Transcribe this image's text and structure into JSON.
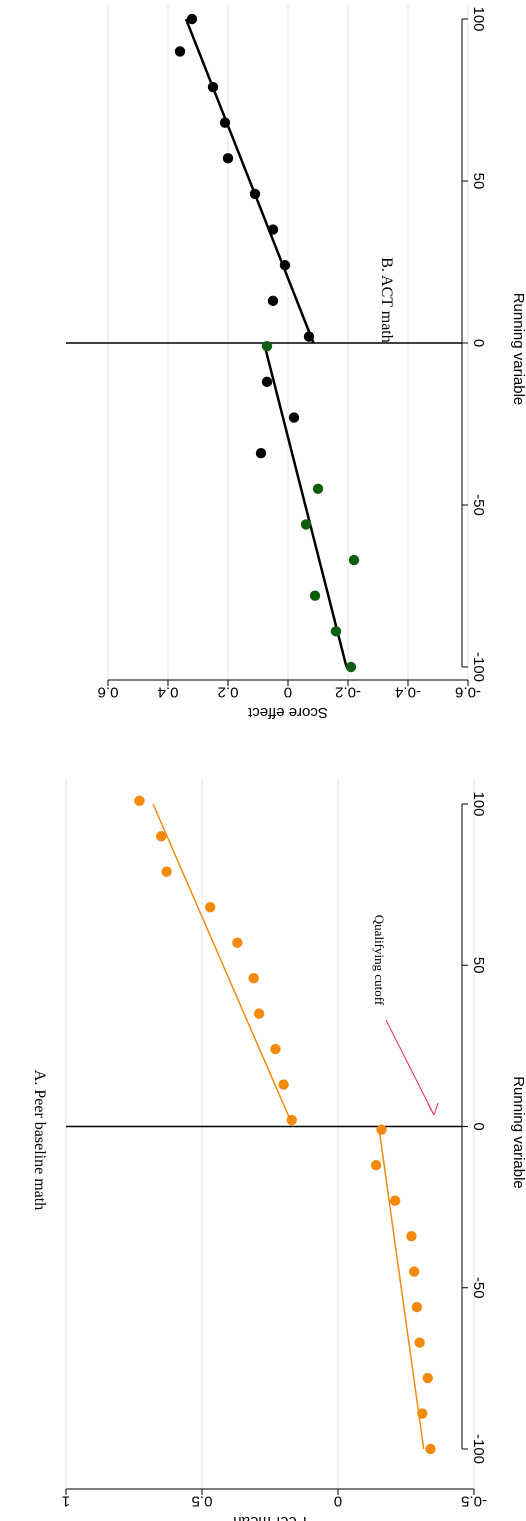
{
  "chart_data": [
    {
      "type": "scatter",
      "title": "A. Peer baseline math",
      "xlabel": "Running variable",
      "ylabel": "Peer mean",
      "xlim": [
        -100,
        100
      ],
      "ylim": [
        -0.5,
        1
      ],
      "x_ticks": [
        -100,
        -50,
        0,
        50,
        100
      ],
      "y_ticks": [
        -0.5,
        0,
        0.5,
        1
      ],
      "x_tick_labels": [
        "-100",
        "-50",
        "0",
        "50",
        "100"
      ],
      "y_tick_labels": [
        "-0.5",
        "0",
        "0.5",
        "1"
      ],
      "grid": true,
      "cutoff_x": 0,
      "annotation": {
        "text": "Qualifying cutoff",
        "points_to_x": 0
      },
      "colors": {
        "points": "#F28A0E",
        "fit": "#F28A0E",
        "cutoff": "#000000",
        "arrow": "#E0344A",
        "grid": "#DCE6E8"
      },
      "series": [
        {
          "x": [
            -100,
            -89,
            -78,
            -67,
            -56,
            -45,
            -34,
            -23,
            -12,
            -1,
            2,
            13,
            24,
            35,
            46,
            57,
            68,
            79,
            90,
            101
          ],
          "y": [
            -0.34,
            -0.31,
            -0.33,
            -0.3,
            -0.29,
            -0.28,
            -0.27,
            -0.21,
            -0.14,
            -0.16,
            0.17,
            0.2,
            0.23,
            0.29,
            0.31,
            0.37,
            0.47,
            0.63,
            0.65,
            0.73
          ]
        }
      ],
      "fits": [
        {
          "x": [
            -100,
            0
          ],
          "y": [
            -0.315,
            -0.15
          ]
        },
        {
          "x": [
            0,
            100
          ],
          "y": [
            0.165,
            0.68
          ]
        }
      ]
    },
    {
      "type": "scatter",
      "title": "B. ACT math",
      "xlabel": "Running variable",
      "ylabel": "Score effect",
      "xlim": [
        -100,
        100
      ],
      "ylim": [
        -0.6,
        0.6
      ],
      "x_ticks": [
        -100,
        -50,
        0,
        50,
        100
      ],
      "y_ticks": [
        -0.6,
        -0.4,
        -0.2,
        0,
        0.2,
        0.4,
        0.6
      ],
      "x_tick_labels": [
        "-100",
        "-50",
        "0",
        "50",
        "100"
      ],
      "y_tick_labels": [
        "-0.6",
        "-0.4",
        "-0.2",
        "0",
        "0.2",
        "0.4",
        "0.6"
      ],
      "grid": true,
      "cutoff_x": 0,
      "colors": {
        "green": "#0F5E0F",
        "black": "#000000",
        "fit": "#000000",
        "cutoff": "#000000",
        "grid": "#DCE6E8"
      },
      "series": [
        {
          "color": "green",
          "x": [
            -100,
            -89,
            -78,
            -67,
            -56,
            -45,
            -1
          ],
          "y": [
            -0.21,
            -0.16,
            -0.09,
            -0.22,
            -0.06,
            -0.1,
            0.07
          ]
        },
        {
          "color": "black",
          "x": [
            -34,
            -23,
            -12,
            2,
            13,
            24,
            35,
            46,
            57,
            68,
            79,
            90,
            100
          ],
          "y": [
            0.09,
            -0.02,
            0.07,
            -0.07,
            0.05,
            0.01,
            0.05,
            0.11,
            0.2,
            0.21,
            0.25,
            0.36,
            0.32
          ]
        }
      ],
      "fits": [
        {
          "x": [
            -100,
            0
          ],
          "y": [
            -0.195,
            0.08
          ]
        },
        {
          "x": [
            0,
            100
          ],
          "y": [
            -0.085,
            0.34
          ]
        }
      ]
    }
  ]
}
